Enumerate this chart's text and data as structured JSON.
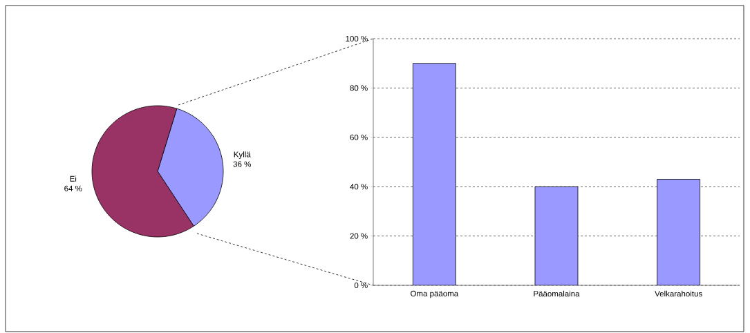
{
  "chart_data": [
    {
      "type": "pie",
      "categories": [
        "Kyllä",
        "Ei"
      ],
      "values": [
        36,
        64
      ],
      "colors": [
        "#9999ff",
        "#993366"
      ],
      "value_labels": [
        "36 %",
        "64 %"
      ]
    },
    {
      "type": "bar",
      "categories": [
        "Oma pääoma",
        "Pääomalaina",
        "Velkarahoitus"
      ],
      "values": [
        90,
        40,
        43
      ],
      "color": "#9999ff",
      "ylim": [
        0,
        100
      ],
      "yticks": [
        {
          "value": 0,
          "label": "0 %"
        },
        {
          "value": 20,
          "label": "20 %"
        },
        {
          "value": 40,
          "label": "40 %"
        },
        {
          "value": 60,
          "label": "60 %"
        },
        {
          "value": 80,
          "label": "80 %"
        },
        {
          "value": 100,
          "label": "100 %"
        }
      ],
      "grid": "y"
    }
  ]
}
